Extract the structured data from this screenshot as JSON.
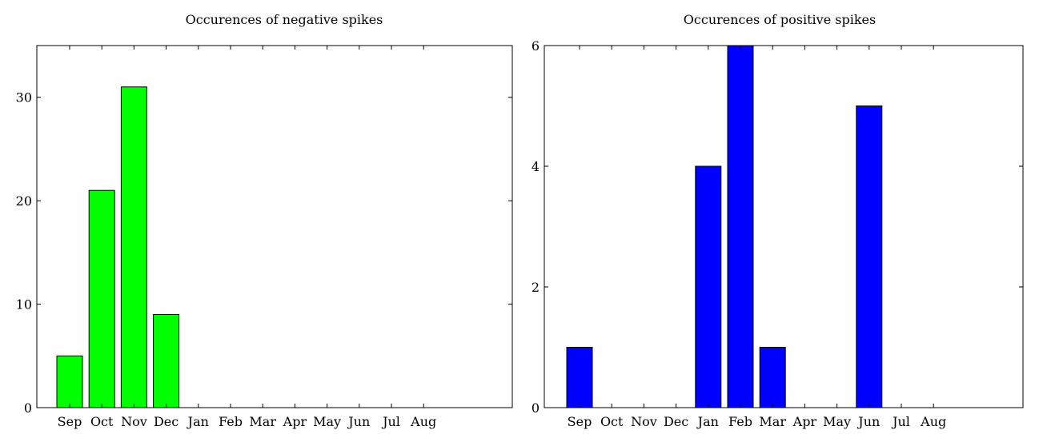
{
  "chart_data": [
    {
      "type": "bar",
      "title": "Occurences of negative spikes",
      "xlabel": "",
      "ylabel": "",
      "categories": [
        "Sep",
        "Oct",
        "Nov",
        "Dec",
        "Jan",
        "Feb",
        "Mar",
        "Apr",
        "May",
        "Jun",
        "Jul",
        "Aug"
      ],
      "values": [
        5,
        21,
        31,
        9,
        0,
        0,
        0,
        0,
        0,
        0,
        0,
        0
      ],
      "ylim": [
        0,
        35
      ],
      "yticks": [
        0,
        10,
        20,
        30
      ],
      "color": "#00ff00",
      "grid": false
    },
    {
      "type": "bar",
      "title": "Occurences of positive spikes",
      "xlabel": "",
      "ylabel": "",
      "categories": [
        "Sep",
        "Oct",
        "Nov",
        "Dec",
        "Jan",
        "Feb",
        "Mar",
        "Apr",
        "May",
        "Jun",
        "Jul",
        "Aug"
      ],
      "values": [
        1,
        0,
        0,
        0,
        4,
        6,
        1,
        0,
        0,
        5,
        0,
        0
      ],
      "ylim": [
        0,
        6
      ],
      "yticks": [
        0,
        2,
        4,
        6
      ],
      "color": "#0000ff",
      "grid": false
    }
  ]
}
